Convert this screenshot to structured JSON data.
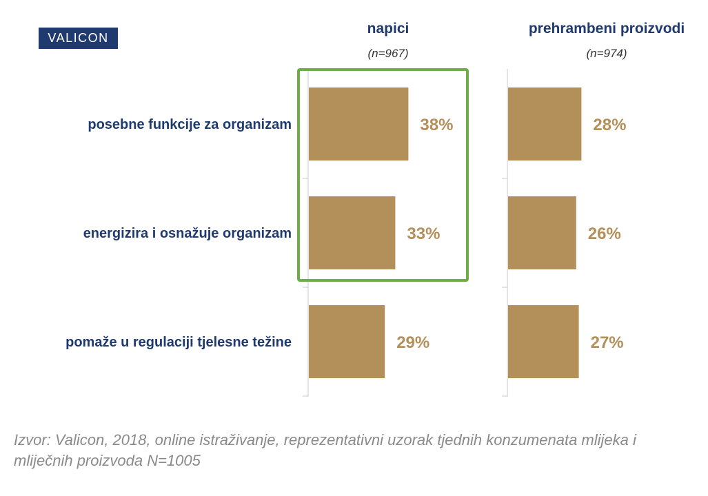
{
  "logo": {
    "text": "VALICON"
  },
  "colors": {
    "bar": "#b38f5a",
    "value_label": "#b38f5a",
    "title": "#1f3a6e",
    "logo_bg": "#1f3a6e",
    "highlight_box": "#70ad47",
    "source": "#8a8a8a"
  },
  "chart_data": [
    {
      "type": "bar",
      "orientation": "horizontal",
      "title": "napici",
      "subtitle": "(n=967)",
      "categories": [
        "posebne funkcije za organizam",
        "energizira i osnažuje organizam",
        "pomaže u regulaciji tjelesne težine"
      ],
      "values": [
        38,
        33,
        29
      ],
      "value_labels": [
        "38%",
        "33%",
        "29%"
      ],
      "xlim": [
        0,
        100
      ],
      "grid": false,
      "highlighted_categories": [
        "posebne funkcije za organizam",
        "energizira i osnažuje organizam"
      ]
    },
    {
      "type": "bar",
      "orientation": "horizontal",
      "title": "prehrambeni proizvodi",
      "subtitle": "(n=974)",
      "categories": [
        "posebne funkcije za organizam",
        "energizira i osnažuje organizam",
        "pomaže u regulaciji tjelesne težine"
      ],
      "values": [
        28,
        26,
        27
      ],
      "value_labels": [
        "28%",
        "26%",
        "27%"
      ],
      "xlim": [
        0,
        100
      ],
      "grid": false
    }
  ],
  "source": "Izvor: Valicon, 2018, online istraživanje, reprezentativni uzorak tjednih konzumenata mlijeka i mliječnih proizvoda N=1005"
}
